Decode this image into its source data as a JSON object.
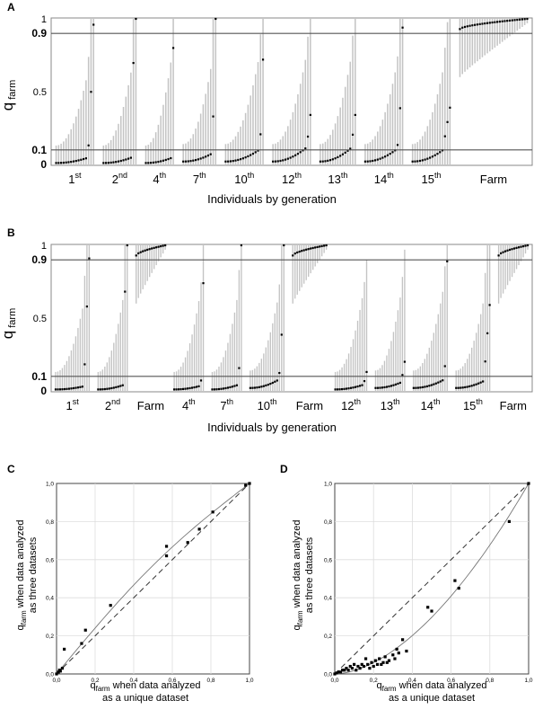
{
  "chart_data": [
    {
      "panel": "A",
      "type": "scatter",
      "ylabel_main": "q",
      "ylabel_sub": "farm",
      "xlabel": "Individuals by generation",
      "yticks": [
        {
          "value": 0,
          "label": "0",
          "bold": true
        },
        {
          "value": 0.1,
          "label": "0.1",
          "bold": true
        },
        {
          "value": 0.5,
          "label": "0.5",
          "bold": false
        },
        {
          "value": 0.9,
          "label": "0.9",
          "bold": true
        },
        {
          "value": 1,
          "label": "1",
          "bold": false
        }
      ],
      "hlines": [
        0.1,
        0.9
      ],
      "groups": [
        {
          "base": "1",
          "sup": "st",
          "n": 16,
          "pattern": "a1"
        },
        {
          "base": "2",
          "sup": "nd",
          "n": 14,
          "pattern": "a2"
        },
        {
          "base": "4",
          "sup": "th",
          "n": 12,
          "pattern": "a4"
        },
        {
          "base": "7",
          "sup": "th",
          "n": 14,
          "pattern": "a7"
        },
        {
          "base": "10",
          "sup": "th",
          "n": 16,
          "pattern": "a10"
        },
        {
          "base": "12",
          "sup": "th",
          "n": 16,
          "pattern": "a12"
        },
        {
          "base": "13",
          "sup": "th",
          "n": 15,
          "pattern": "a13"
        },
        {
          "base": "14",
          "sup": "th",
          "n": 16,
          "pattern": "a14"
        },
        {
          "base": "15",
          "sup": "th",
          "n": 16,
          "pattern": "a15"
        },
        {
          "base": "Farm",
          "sup": "",
          "n": 28,
          "pattern": "farm"
        }
      ]
    },
    {
      "panel": "B",
      "type": "scatter",
      "ylabel_main": "q",
      "ylabel_sub": "farm",
      "xlabel": "Individuals by generation",
      "yticks": [
        {
          "value": 0,
          "label": "0",
          "bold": true
        },
        {
          "value": 0.1,
          "label": "0.1",
          "bold": true
        },
        {
          "value": 0.5,
          "label": "0.5",
          "bold": false
        },
        {
          "value": 0.9,
          "label": "0.9",
          "bold": true
        },
        {
          "value": 1,
          "label": "1",
          "bold": false
        }
      ],
      "hlines": [
        0.1,
        0.9
      ],
      "groups": [
        {
          "base": "1",
          "sup": "st",
          "n": 16,
          "pattern": "b1"
        },
        {
          "base": "2",
          "sup": "nd",
          "n": 14,
          "pattern": "b2"
        },
        {
          "base": "Farm",
          "sup": "",
          "n": 14,
          "pattern": "farm"
        },
        {
          "base": "4",
          "sup": "th",
          "n": 14,
          "pattern": "b4"
        },
        {
          "base": "7",
          "sup": "th",
          "n": 14,
          "pattern": "b7"
        },
        {
          "base": "10",
          "sup": "th",
          "n": 16,
          "pattern": "b10"
        },
        {
          "base": "Farm",
          "sup": "",
          "n": 16,
          "pattern": "farm"
        },
        {
          "base": "12",
          "sup": "th",
          "n": 15,
          "pattern": "b12"
        },
        {
          "base": "13",
          "sup": "th",
          "n": 14,
          "pattern": "b13"
        },
        {
          "base": "14",
          "sup": "th",
          "n": 16,
          "pattern": "b14"
        },
        {
          "base": "15",
          "sup": "th",
          "n": 16,
          "pattern": "b15"
        },
        {
          "base": "Farm",
          "sup": "",
          "n": 14,
          "pattern": "farm"
        }
      ]
    },
    {
      "panel": "C",
      "type": "scatter",
      "xlabel_line1_main": "q",
      "xlabel_line1_sub": "farm",
      "xlabel_line1_rest": " when data analyzed",
      "xlabel_line2": "as a unique dataset",
      "ylabel_line1_main": "q",
      "ylabel_line1_sub": "farm",
      "ylabel_line1_rest": " when data analyzed",
      "ylabel_line2": "as three datasets",
      "xlim": [
        0,
        1
      ],
      "ylim": [
        0,
        1
      ],
      "ticks": [
        "0,0",
        "0,2",
        "0,4",
        "0,6",
        "0,8",
        "1,0"
      ],
      "points": [
        [
          0.0,
          0.0
        ],
        [
          0.01,
          0.01
        ],
        [
          0.015,
          0.02
        ],
        [
          0.02,
          0.015
        ],
        [
          0.03,
          0.03
        ],
        [
          0.04,
          0.13
        ],
        [
          0.13,
          0.16
        ],
        [
          0.15,
          0.23
        ],
        [
          0.28,
          0.36
        ],
        [
          0.57,
          0.62
        ],
        [
          0.57,
          0.67
        ],
        [
          0.68,
          0.69
        ],
        [
          0.74,
          0.76
        ],
        [
          0.81,
          0.85
        ],
        [
          0.98,
          0.99
        ],
        [
          1.0,
          1.0
        ]
      ],
      "curve": "concave-up"
    },
    {
      "panel": "D",
      "type": "scatter",
      "xlabel_line1_main": "q",
      "xlabel_line1_sub": "farm",
      "xlabel_line1_rest": " when data analyzed",
      "xlabel_line2": "as a unique dataset",
      "ylabel_line1_main": "q",
      "ylabel_line1_sub": "farm",
      "ylabel_line1_rest": " when data analyzed",
      "ylabel_line2": "as three datasets",
      "xlim": [
        0,
        1
      ],
      "ylim": [
        0,
        1
      ],
      "ticks": [
        "0,0",
        "0,2",
        "0,4",
        "0,6",
        "0,8",
        "1,0"
      ],
      "points": [
        [
          0.0,
          0.0
        ],
        [
          0.01,
          0.005
        ],
        [
          0.02,
          0.01
        ],
        [
          0.03,
          0.01
        ],
        [
          0.04,
          0.02
        ],
        [
          0.05,
          0.02
        ],
        [
          0.06,
          0.03
        ],
        [
          0.07,
          0.02
        ],
        [
          0.08,
          0.04
        ],
        [
          0.09,
          0.03
        ],
        [
          0.1,
          0.05
        ],
        [
          0.11,
          0.02
        ],
        [
          0.12,
          0.04
        ],
        [
          0.13,
          0.03
        ],
        [
          0.14,
          0.05
        ],
        [
          0.15,
          0.04
        ],
        [
          0.16,
          0.08
        ],
        [
          0.17,
          0.05
        ],
        [
          0.18,
          0.03
        ],
        [
          0.19,
          0.06
        ],
        [
          0.2,
          0.04
        ],
        [
          0.21,
          0.07
        ],
        [
          0.22,
          0.05
        ],
        [
          0.23,
          0.08
        ],
        [
          0.24,
          0.05
        ],
        [
          0.25,
          0.06
        ],
        [
          0.26,
          0.09
        ],
        [
          0.27,
          0.06
        ],
        [
          0.28,
          0.07
        ],
        [
          0.3,
          0.1
        ],
        [
          0.31,
          0.08
        ],
        [
          0.32,
          0.13
        ],
        [
          0.33,
          0.11
        ],
        [
          0.35,
          0.18
        ],
        [
          0.37,
          0.12
        ],
        [
          0.48,
          0.35
        ],
        [
          0.5,
          0.33
        ],
        [
          0.62,
          0.49
        ],
        [
          0.64,
          0.45
        ],
        [
          0.9,
          0.8
        ],
        [
          1.0,
          1.0
        ]
      ],
      "curve": "convex"
    }
  ],
  "panel_letters": [
    "A",
    "B",
    "C",
    "D"
  ]
}
